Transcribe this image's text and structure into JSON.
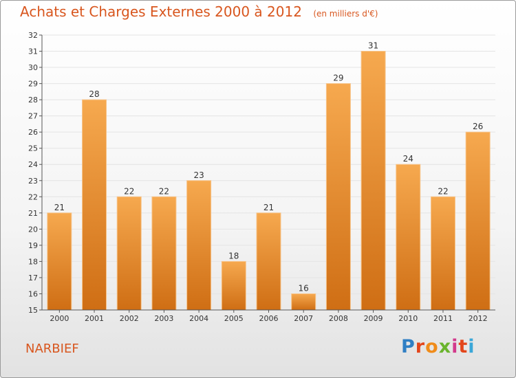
{
  "header": {
    "title": "Achats et Charges Externes 2000 à 2012",
    "unit": "(en milliers d'€)"
  },
  "footer": {
    "commune": "NARBIEF",
    "logo_letters": [
      "P",
      "r",
      "o",
      "x",
      "i",
      "t",
      "i"
    ],
    "logo_colors": [
      "#2f7fc4",
      "#e3461b",
      "#f08c1a",
      "#6ab42d",
      "#d23a8c",
      "#e3461b",
      "#3aa7d8"
    ]
  },
  "colors": {
    "title": "#d8561e",
    "bar_top": "#f6a94f",
    "bar_bottom": "#cf6e14",
    "grid": "#e4e4e4",
    "axis": "#555555"
  },
  "chart_data": {
    "type": "bar",
    "title": "Achats et Charges Externes 2000 à 2012",
    "subtitle": "(en milliers d'€)",
    "categories": [
      "2000",
      "2001",
      "2002",
      "2003",
      "2004",
      "2005",
      "2006",
      "2007",
      "2008",
      "2009",
      "2010",
      "2011",
      "2012"
    ],
    "values": [
      21,
      28,
      22,
      22,
      23,
      18,
      21,
      16,
      29,
      31,
      24,
      22,
      26
    ],
    "ylim": [
      15,
      32
    ],
    "yticks": [
      15,
      16,
      17,
      18,
      19,
      20,
      21,
      22,
      23,
      24,
      25,
      26,
      27,
      28,
      29,
      30,
      31,
      32
    ],
    "grid": true,
    "data_labels": true
  }
}
